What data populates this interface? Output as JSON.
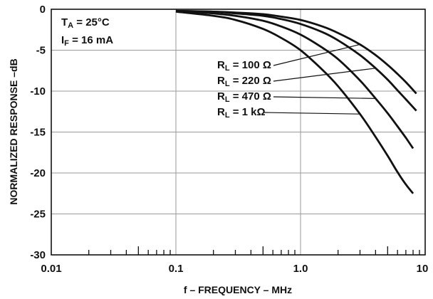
{
  "chart_data": {
    "type": "line",
    "xscale": "log",
    "xlim": [
      0.01,
      10
    ],
    "ylim": [
      -30,
      0
    ],
    "xticks": [
      "0.01",
      "0.1",
      "1.0",
      "10"
    ],
    "yticks": [
      "0",
      "-5",
      "-10",
      "-15",
      "-20",
      "-25",
      "-30"
    ],
    "xlabel": "f – FREQUENCY – MHz",
    "ylabel": "NORMALIZED RESPONSE –dB",
    "grid": true,
    "conditions": [
      {
        "main": "T",
        "sub": "A",
        "rest": " = 25°C"
      },
      {
        "main": "I",
        "sub": "F",
        "rest": " = 16 mA"
      }
    ],
    "series": [
      {
        "name": "RL = 100 Ω",
        "label_main": "R",
        "label_sub": "L",
        "label_rest": " = 100 Ω",
        "x": [
          0.1,
          0.2,
          0.3,
          0.5,
          0.7,
          1.0,
          1.5,
          2.0,
          3.0,
          4.0,
          5.0,
          6.0,
          7.0,
          8.5
        ],
        "y": [
          -0.2,
          -0.3,
          -0.4,
          -0.6,
          -0.9,
          -1.3,
          -2.1,
          -2.9,
          -4.3,
          -5.6,
          -6.8,
          -7.9,
          -8.9,
          -10.3
        ]
      },
      {
        "name": "RL = 220 Ω",
        "label_main": "R",
        "label_sub": "L",
        "label_rest": " = 220 Ω",
        "x": [
          0.1,
          0.2,
          0.3,
          0.5,
          0.7,
          1.0,
          1.5,
          2.0,
          3.0,
          4.0,
          5.0,
          6.0,
          7.0,
          8.5
        ],
        "y": [
          -0.2,
          -0.3,
          -0.5,
          -0.8,
          -1.2,
          -1.8,
          -2.8,
          -3.8,
          -5.6,
          -7.2,
          -8.6,
          -9.9,
          -11.0,
          -12.4
        ]
      },
      {
        "name": "RL = 470 Ω",
        "label_main": "R",
        "label_sub": "L",
        "label_rest": " = 470 Ω",
        "x": [
          0.1,
          0.2,
          0.3,
          0.5,
          0.7,
          1.0,
          1.5,
          2.0,
          3.0,
          4.0,
          5.0,
          6.0,
          7.0,
          8.0
        ],
        "y": [
          -0.2,
          -0.5,
          -0.8,
          -1.4,
          -2.1,
          -3.1,
          -4.7,
          -6.1,
          -8.7,
          -10.9,
          -12.7,
          -14.3,
          -15.7,
          -17.0
        ]
      },
      {
        "name": "RL = 1 kΩ",
        "label_main": "R",
        "label_sub": "L",
        "label_rest": " = 1 kΩ",
        "x": [
          0.1,
          0.2,
          0.3,
          0.5,
          0.7,
          1.0,
          1.5,
          2.0,
          3.0,
          4.0,
          5.0,
          6.0,
          7.0,
          8.0
        ],
        "y": [
          -0.3,
          -0.8,
          -1.3,
          -2.4,
          -3.5,
          -5.0,
          -7.4,
          -9.4,
          -12.8,
          -15.6,
          -17.9,
          -19.9,
          -21.4,
          -22.5
        ]
      }
    ]
  }
}
